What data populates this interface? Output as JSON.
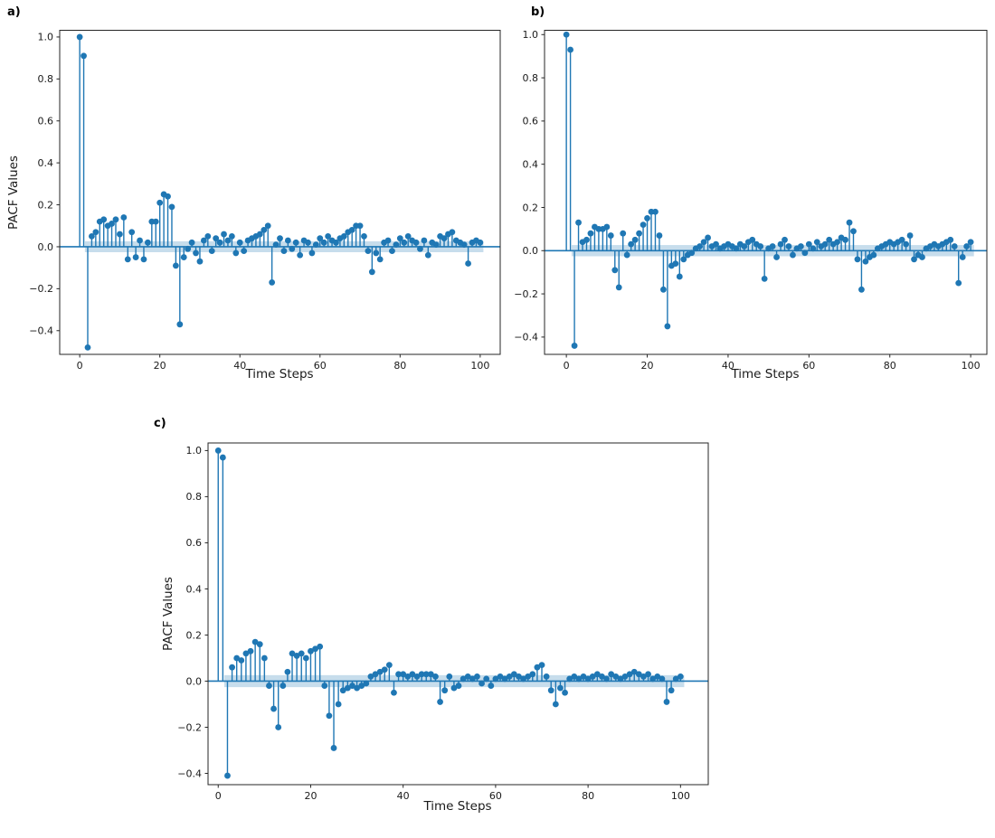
{
  "figure": {
    "background": "#ffffff",
    "accent_color": "#1f77b4",
    "spine_color": "#262626",
    "tick_color": "#1a1a1a"
  },
  "chart_data": [
    {
      "type": "stem",
      "panel_label": "a)",
      "xlabel": "Time Steps",
      "ylabel": "PACF Values",
      "x_unit": "integer lags, index of values = lag 0..100",
      "x_ticks": [
        0,
        20,
        40,
        60,
        80,
        100
      ],
      "y_ticks": [
        1.0,
        0.8,
        0.6,
        0.4,
        0.2,
        0.0,
        -0.2,
        -0.4
      ],
      "xlim_data": [
        0,
        100
      ],
      "ylim_shown": [
        -0.51,
        1.03
      ],
      "confidence_band_halfwidth": 0.026,
      "grid": false,
      "legend": "none",
      "values": [
        1.0,
        0.91,
        -0.48,
        0.05,
        0.07,
        0.12,
        0.13,
        0.1,
        0.11,
        0.13,
        0.06,
        0.14,
        -0.06,
        0.07,
        -0.05,
        0.03,
        -0.06,
        0.02,
        0.12,
        0.12,
        0.21,
        0.25,
        0.24,
        0.19,
        -0.09,
        -0.37,
        -0.05,
        -0.01,
        0.02,
        -0.03,
        -0.07,
        0.03,
        0.05,
        -0.02,
        0.04,
        0.02,
        0.06,
        0.03,
        0.05,
        -0.03,
        0.02,
        -0.02,
        0.03,
        0.04,
        0.05,
        0.06,
        0.08,
        0.1,
        -0.17,
        0.01,
        0.04,
        -0.02,
        0.03,
        -0.01,
        0.02,
        -0.04,
        0.03,
        0.02,
        -0.03,
        0.01,
        0.04,
        0.02,
        0.05,
        0.03,
        0.02,
        0.04,
        0.05,
        0.07,
        0.08,
        0.1,
        0.1,
        0.05,
        -0.02,
        -0.12,
        -0.03,
        -0.06,
        0.02,
        0.03,
        -0.02,
        0.01,
        0.04,
        0.02,
        0.05,
        0.03,
        0.02,
        -0.01,
        0.03,
        -0.04,
        0.02,
        0.01,
        0.05,
        0.04,
        0.06,
        0.07,
        0.03,
        0.02,
        0.01,
        -0.08,
        0.02,
        0.03,
        0.02
      ]
    },
    {
      "type": "stem",
      "panel_label": "b)",
      "xlabel": "Time Steps",
      "ylabel": "",
      "x_unit": "integer lags, index of values = lag 0..100",
      "x_ticks": [
        0,
        20,
        40,
        60,
        80,
        100
      ],
      "y_ticks": [
        1.0,
        0.8,
        0.6,
        0.4,
        0.2,
        0.0,
        -0.2,
        -0.4
      ],
      "xlim_data": [
        0,
        100
      ],
      "ylim_shown": [
        -0.48,
        1.02
      ],
      "confidence_band_halfwidth": 0.026,
      "grid": false,
      "legend": "none",
      "values": [
        1.0,
        0.93,
        -0.44,
        0.13,
        0.04,
        0.05,
        0.08,
        0.11,
        0.1,
        0.1,
        0.11,
        0.07,
        -0.09,
        -0.17,
        0.08,
        -0.02,
        0.03,
        0.05,
        0.08,
        0.12,
        0.15,
        0.18,
        0.18,
        0.07,
        -0.18,
        -0.35,
        -0.07,
        -0.06,
        -0.12,
        -0.04,
        -0.02,
        -0.01,
        0.01,
        0.02,
        0.04,
        0.06,
        0.02,
        0.03,
        0.01,
        0.02,
        0.03,
        0.02,
        0.01,
        0.03,
        0.02,
        0.04,
        0.05,
        0.03,
        0.02,
        -0.13,
        0.01,
        0.02,
        -0.03,
        0.03,
        0.05,
        0.02,
        -0.02,
        0.01,
        0.02,
        -0.01,
        0.03,
        0.01,
        0.04,
        0.02,
        0.03,
        0.05,
        0.03,
        0.04,
        0.06,
        0.05,
        0.13,
        0.09,
        -0.04,
        -0.18,
        -0.05,
        -0.03,
        -0.02,
        0.01,
        0.02,
        0.03,
        0.04,
        0.03,
        0.04,
        0.05,
        0.03,
        0.07,
        -0.04,
        -0.02,
        -0.03,
        0.01,
        0.02,
        0.03,
        0.02,
        0.03,
        0.04,
        0.05,
        0.02,
        -0.15,
        -0.03,
        0.02,
        0.04
      ]
    },
    {
      "type": "stem",
      "panel_label": "c)",
      "xlabel": "Time Steps",
      "ylabel": "PACF Values",
      "x_unit": "integer lags, index of values = lag 0..100",
      "x_ticks": [
        0,
        20,
        40,
        60,
        80,
        100
      ],
      "y_ticks": [
        1.0,
        0.8,
        0.6,
        0.4,
        0.2,
        0.0,
        -0.2,
        -0.4
      ],
      "xlim_data": [
        0,
        100
      ],
      "ylim_shown": [
        -0.45,
        1.03
      ],
      "confidence_band_halfwidth": 0.026,
      "grid": false,
      "legend": "none",
      "values": [
        1.0,
        0.97,
        -0.41,
        0.06,
        0.1,
        0.09,
        0.12,
        0.13,
        0.17,
        0.16,
        0.1,
        -0.02,
        -0.12,
        -0.2,
        -0.02,
        0.04,
        0.12,
        0.11,
        0.12,
        0.1,
        0.13,
        0.14,
        0.15,
        -0.02,
        -0.15,
        -0.29,
        -0.1,
        -0.04,
        -0.03,
        -0.02,
        -0.03,
        -0.02,
        -0.01,
        0.02,
        0.03,
        0.04,
        0.05,
        0.07,
        -0.05,
        0.03,
        0.03,
        0.02,
        0.03,
        0.02,
        0.03,
        0.03,
        0.03,
        0.02,
        -0.09,
        -0.04,
        0.02,
        -0.03,
        -0.02,
        0.01,
        0.02,
        0.01,
        0.02,
        -0.01,
        0.01,
        -0.02,
        0.01,
        0.02,
        0.01,
        0.02,
        0.03,
        0.02,
        0.01,
        0.02,
        0.03,
        0.06,
        0.07,
        0.02,
        -0.04,
        -0.1,
        -0.03,
        -0.05,
        0.01,
        0.02,
        0.01,
        0.02,
        0.01,
        0.02,
        0.03,
        0.02,
        0.01,
        0.03,
        0.02,
        0.01,
        0.02,
        0.03,
        0.04,
        0.03,
        0.02,
        0.03,
        0.01,
        0.02,
        0.01,
        -0.09,
        -0.04,
        0.01,
        0.02
      ]
    }
  ]
}
